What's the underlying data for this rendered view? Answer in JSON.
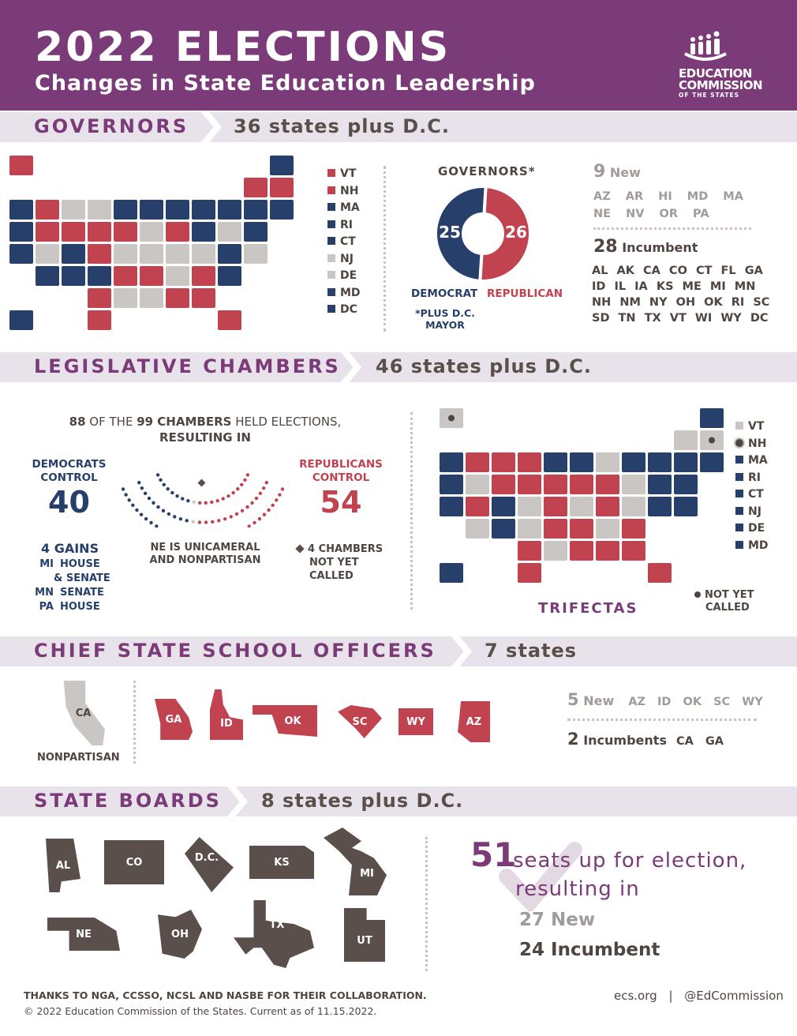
{
  "header": {
    "title": "2022 ELECTIONS",
    "subtitle": "Changes in State Education Leadership",
    "logo": {
      "line1": "EDUCATION",
      "line2": "COMMISSION",
      "line3": "OF THE STATES"
    }
  },
  "colors": {
    "header": "#7b3a78",
    "democrat": "#26406b",
    "republican": "#c1434f",
    "other": "#c9c6c4",
    "band": "#e8e3ea",
    "board": "#5a4f4b"
  },
  "governors": {
    "section_label": "GOVERNORS",
    "section_count": "36 states plus D.C.",
    "legend": [
      {
        "state": "VT",
        "party": "R"
      },
      {
        "state": "NH",
        "party": "R"
      },
      {
        "state": "MA",
        "party": "D"
      },
      {
        "state": "RI",
        "party": "D"
      },
      {
        "state": "CT",
        "party": "D"
      },
      {
        "state": "NJ",
        "party": "O"
      },
      {
        "state": "DE",
        "party": "O"
      },
      {
        "state": "MD",
        "party": "D"
      },
      {
        "state": "DC",
        "party": "D"
      }
    ],
    "map": {
      "WA": "D",
      "OR": "D",
      "CA": "D",
      "NV": "R",
      "ID": "R",
      "MT": "O",
      "WY": "R",
      "UT": "O",
      "AZ": "D",
      "CO": "D",
      "NM": "D",
      "ND": "O",
      "SD": "R",
      "NE": "R",
      "KS": "D",
      "OK": "R",
      "TX": "R",
      "MN": "D",
      "IA": "R",
      "MO": "O",
      "AR": "R",
      "LA": "O",
      "WI": "D",
      "IL": "D",
      "MI": "D",
      "IN": "O",
      "OH": "R",
      "KY": "O",
      "TN": "R",
      "MS": "O",
      "AL": "R",
      "GA": "R",
      "FL": "R",
      "SC": "R",
      "NC": "O",
      "VA": "O",
      "WV": "O",
      "PA": "D",
      "NY": "D",
      "VT": "R",
      "NH": "R",
      "ME": "D",
      "MA": "D",
      "RI": "D",
      "CT": "D",
      "NJ": "O",
      "DE": "O",
      "MD": "D",
      "DC": "D",
      "AK": "R",
      "HI": "D"
    },
    "chart": {
      "title": "GOVERNORS*",
      "democrat": {
        "label": "DEMOCRAT",
        "value": 25
      },
      "republican": {
        "label": "REPUBLICAN",
        "value": 26
      },
      "footnote": "*PLUS D.C. MAYOR"
    },
    "new": {
      "count": "9",
      "label": "New",
      "states": "AZ AR HI MD MA NE NV OR PA"
    },
    "incumbent": {
      "count": "28",
      "label": "Incumbent",
      "rows": [
        "AL AK CA CO CT FL GA",
        "ID IL IA KS ME MI MN",
        "NH NM NY OH OK RI SC",
        "SD TN TX VT WI WY DC"
      ]
    }
  },
  "legislative": {
    "section_label": "LEGISLATIVE CHAMBERS",
    "section_count": "46 states plus D.C.",
    "intro": {
      "a": "88",
      "b": " OF THE ",
      "c": "99 CHAMBERS",
      "d": " HELD ELECTIONS,",
      "e": "RESULTING IN"
    },
    "democrats": {
      "label1": "DEMOCRATS",
      "label2": "CONTROL",
      "value": "40"
    },
    "republicans": {
      "label1": "REPUBLICANS",
      "label2": "CONTROL",
      "value": "54"
    },
    "arc_values": {
      "democrat": 40,
      "other": 5,
      "republican": 54
    },
    "gains": {
      "title": "4 GAINS",
      "items": [
        {
          "state": "MI",
          "chamber": "HOUSE",
          "chamber2": "& SENATE"
        },
        {
          "state": "MN",
          "chamber": "SENATE"
        },
        {
          "state": "PA",
          "chamber": "HOUSE"
        }
      ]
    },
    "ne_note": [
      "NE IS UNICAMERAL",
      "AND NONPARTISAN"
    ],
    "not_called": [
      "4 CHAMBERS",
      "NOT YET",
      "CALLED"
    ],
    "trifectas_label": "TRIFECTAS",
    "trifecta_note": [
      "NOT YET",
      "CALLED"
    ],
    "legend": [
      {
        "state": "VT",
        "party": "O"
      },
      {
        "state": "NH",
        "party": "N"
      },
      {
        "state": "MA",
        "party": "D"
      },
      {
        "state": "RI",
        "party": "D"
      },
      {
        "state": "CT",
        "party": "D"
      },
      {
        "state": "NJ",
        "party": "D"
      },
      {
        "state": "DE",
        "party": "D"
      },
      {
        "state": "MD",
        "party": "D"
      }
    ],
    "map": {
      "WA": "D",
      "OR": "D",
      "CA": "D",
      "NV": "O",
      "ID": "R",
      "MT": "R",
      "WY": "R",
      "UT": "R",
      "AZ": "O",
      "CO": "D",
      "NM": "D",
      "ND": "R",
      "SD": "R",
      "NE": "O",
      "KS": "O",
      "OK": "R",
      "TX": "R",
      "MN": "D",
      "IA": "R",
      "MO": "R",
      "AR": "R",
      "LA": "O",
      "WI": "O",
      "IL": "D",
      "MI": "D",
      "IN": "R",
      "OH": "R",
      "KY": "O",
      "TN": "R",
      "MS": "R",
      "AL": "R",
      "GA": "R",
      "FL": "R",
      "SC": "R",
      "NC": "O",
      "VA": "O",
      "WV": "R",
      "PA": "O",
      "NY": "D",
      "VT": "O",
      "NH": "N",
      "ME": "D",
      "MA": "D",
      "RI": "D",
      "CT": "D",
      "NJ": "D",
      "DE": "D",
      "MD": "D",
      "AK": "N",
      "HI": "D"
    }
  },
  "csso": {
    "section_label": "CHIEF STATE SCHOOL OFFICERS",
    "section_count": "7 states",
    "nonpartisan": {
      "state": "CA",
      "label": "NONPARTISAN"
    },
    "states": [
      "GA",
      "ID",
      "OK",
      "SC",
      "WY",
      "AZ"
    ],
    "new": {
      "count": "5",
      "label": "New",
      "states": "AZ ID OK SC WY"
    },
    "incumbent": {
      "count": "2",
      "label": "Incumbents",
      "states": "CA GA"
    }
  },
  "boards": {
    "section_label": "STATE BOARDS",
    "section_count": "8 states plus D.C.",
    "states": [
      "AL",
      "CO",
      "D.C.",
      "KS",
      "MI",
      "NE",
      "OH",
      "TX",
      "UT"
    ],
    "seats": {
      "count": "51",
      "line1": "seats up for election,",
      "line2": "resulting in"
    },
    "new": "27 New",
    "incumbent": "24 Incumbent"
  },
  "footer": {
    "thanks": "THANKS TO NGA, CCSSO, NCSL AND NASBE FOR THEIR COLLABORATION.",
    "copyright": "© 2022 Education Commission of the States. Current as of 11.15.2022.",
    "site": "ecs.org",
    "sep": "|",
    "handle": "@EdCommission"
  }
}
